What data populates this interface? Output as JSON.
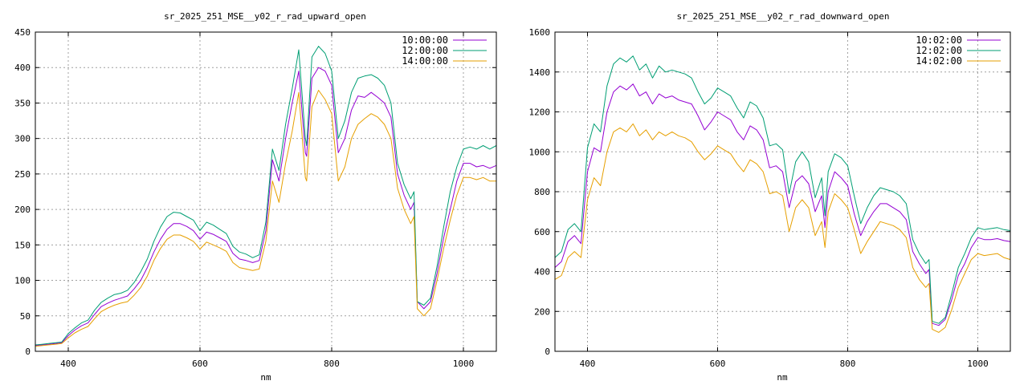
{
  "chart_data": [
    {
      "type": "line",
      "title": "sr_2025_251_MSE__y02_r_rad_upward_open",
      "xlabel": "nm",
      "ylabel": "",
      "xlim": [
        350,
        1050
      ],
      "ylim": [
        0,
        450
      ],
      "xticks": [
        400,
        600,
        800,
        1000
      ],
      "yticks": [
        0,
        50,
        100,
        150,
        200,
        250,
        300,
        350,
        400,
        450
      ],
      "grid": true,
      "legend_position": "top-right",
      "series": [
        {
          "name": "10:00:00",
          "color": "#9400d3",
          "x": [
            350,
            360,
            370,
            380,
            390,
            400,
            410,
            420,
            430,
            440,
            450,
            460,
            470,
            480,
            490,
            500,
            510,
            520,
            530,
            540,
            550,
            560,
            570,
            580,
            590,
            600,
            610,
            620,
            630,
            640,
            650,
            660,
            670,
            680,
            690,
            700,
            710,
            720,
            730,
            740,
            750,
            760,
            762,
            770,
            780,
            790,
            800,
            810,
            820,
            830,
            840,
            850,
            860,
            870,
            880,
            890,
            900,
            910,
            920,
            925,
            930,
            940,
            950,
            960,
            970,
            980,
            990,
            1000,
            1010,
            1020,
            1030,
            1040,
            1050
          ],
          "y": [
            8,
            9,
            10,
            11,
            12,
            22,
            30,
            36,
            40,
            52,
            63,
            68,
            72,
            75,
            78,
            88,
            100,
            118,
            140,
            158,
            172,
            180,
            180,
            176,
            170,
            158,
            168,
            165,
            160,
            155,
            138,
            130,
            128,
            125,
            128,
            170,
            270,
            240,
            300,
            350,
            395,
            280,
            275,
            385,
            400,
            395,
            375,
            280,
            300,
            340,
            360,
            358,
            365,
            358,
            350,
            330,
            250,
            220,
            200,
            210,
            70,
            60,
            70,
            110,
            160,
            200,
            240,
            265,
            265,
            260,
            262,
            258,
            262
          ]
        },
        {
          "name": "12:00:00",
          "color": "#009e73",
          "x": [
            350,
            360,
            370,
            380,
            390,
            400,
            410,
            420,
            430,
            440,
            450,
            460,
            470,
            480,
            490,
            500,
            510,
            520,
            530,
            540,
            550,
            560,
            570,
            580,
            590,
            600,
            610,
            620,
            630,
            640,
            650,
            660,
            670,
            680,
            690,
            700,
            710,
            720,
            730,
            740,
            750,
            760,
            762,
            770,
            780,
            790,
            800,
            810,
            820,
            830,
            840,
            850,
            860,
            870,
            880,
            890,
            900,
            910,
            920,
            925,
            930,
            940,
            950,
            960,
            970,
            980,
            990,
            1000,
            1010,
            1020,
            1030,
            1040,
            1050
          ],
          "y": [
            9,
            10,
            11,
            12,
            13,
            25,
            33,
            40,
            44,
            58,
            69,
            75,
            80,
            82,
            86,
            97,
            112,
            130,
            155,
            175,
            190,
            196,
            195,
            190,
            185,
            170,
            182,
            178,
            172,
            166,
            148,
            140,
            137,
            132,
            136,
            182,
            285,
            255,
            320,
            370,
            425,
            300,
            290,
            415,
            430,
            420,
            395,
            300,
            325,
            365,
            385,
            388,
            390,
            385,
            375,
            350,
            265,
            235,
            215,
            225,
            70,
            65,
            75,
            120,
            175,
            225,
            260,
            285,
            288,
            285,
            290,
            285,
            290
          ]
        },
        {
          "name": "14:00:00",
          "color": "#e69f00",
          "x": [
            350,
            360,
            370,
            380,
            390,
            400,
            410,
            420,
            430,
            440,
            450,
            460,
            470,
            480,
            490,
            500,
            510,
            520,
            530,
            540,
            550,
            560,
            570,
            580,
            590,
            600,
            610,
            620,
            630,
            640,
            650,
            660,
            670,
            680,
            690,
            700,
            710,
            720,
            730,
            740,
            750,
            760,
            762,
            770,
            780,
            790,
            800,
            810,
            820,
            830,
            840,
            850,
            860,
            870,
            880,
            890,
            900,
            910,
            920,
            925,
            930,
            940,
            950,
            960,
            970,
            980,
            990,
            1000,
            1010,
            1020,
            1030,
            1040,
            1050
          ],
          "y": [
            7,
            8,
            9,
            10,
            11,
            19,
            26,
            31,
            35,
            46,
            56,
            61,
            65,
            68,
            70,
            79,
            90,
            106,
            128,
            145,
            158,
            164,
            164,
            160,
            155,
            144,
            154,
            150,
            146,
            141,
            125,
            118,
            116,
            114,
            116,
            155,
            240,
            210,
            265,
            310,
            365,
            245,
            240,
            345,
            368,
            355,
            335,
            240,
            260,
            300,
            320,
            328,
            335,
            330,
            320,
            300,
            230,
            200,
            180,
            190,
            60,
            50,
            60,
            100,
            145,
            185,
            220,
            245,
            245,
            242,
            245,
            240,
            240
          ]
        }
      ]
    },
    {
      "type": "line",
      "title": "sr_2025_251_MSE__y02_r_rad_downward_open",
      "xlabel": "nm",
      "ylabel": "",
      "xlim": [
        350,
        1050
      ],
      "ylim": [
        0,
        1600
      ],
      "xticks": [
        400,
        600,
        800,
        1000
      ],
      "yticks": [
        0,
        200,
        400,
        600,
        800,
        1000,
        1200,
        1400,
        1600
      ],
      "grid": true,
      "legend_position": "top-right",
      "series": [
        {
          "name": "10:02:00",
          "color": "#9400d3",
          "x": [
            350,
            360,
            370,
            380,
            390,
            400,
            410,
            420,
            430,
            440,
            450,
            460,
            470,
            480,
            490,
            500,
            510,
            520,
            530,
            540,
            550,
            560,
            570,
            580,
            590,
            600,
            610,
            620,
            630,
            640,
            650,
            660,
            670,
            680,
            690,
            700,
            710,
            720,
            730,
            740,
            750,
            760,
            765,
            770,
            780,
            790,
            800,
            810,
            820,
            830,
            840,
            850,
            860,
            870,
            880,
            890,
            900,
            910,
            920,
            925,
            930,
            940,
            950,
            960,
            970,
            980,
            990,
            1000,
            1010,
            1020,
            1030,
            1040,
            1050
          ],
          "y": [
            420,
            450,
            550,
            580,
            540,
            900,
            1020,
            1000,
            1200,
            1300,
            1330,
            1310,
            1340,
            1280,
            1300,
            1240,
            1290,
            1270,
            1280,
            1260,
            1250,
            1240,
            1180,
            1110,
            1150,
            1200,
            1180,
            1160,
            1100,
            1060,
            1130,
            1110,
            1060,
            920,
            930,
            900,
            720,
            850,
            880,
            840,
            700,
            780,
            620,
            800,
            900,
            870,
            830,
            690,
            580,
            650,
            700,
            740,
            740,
            720,
            700,
            660,
            500,
            440,
            390,
            410,
            140,
            130,
            160,
            260,
            380,
            440,
            520,
            570,
            560,
            560,
            565,
            555,
            550
          ]
        },
        {
          "name": "12:02:00",
          "color": "#009e73",
          "x": [
            350,
            360,
            370,
            380,
            390,
            400,
            410,
            420,
            430,
            440,
            450,
            460,
            470,
            480,
            490,
            500,
            510,
            520,
            530,
            540,
            550,
            560,
            570,
            580,
            590,
            600,
            610,
            620,
            630,
            640,
            650,
            660,
            670,
            680,
            690,
            700,
            710,
            720,
            730,
            740,
            750,
            760,
            765,
            770,
            780,
            790,
            800,
            810,
            820,
            830,
            840,
            850,
            860,
            870,
            880,
            890,
            900,
            910,
            920,
            925,
            930,
            940,
            950,
            960,
            970,
            980,
            990,
            1000,
            1010,
            1020,
            1030,
            1040,
            1050
          ],
          "y": [
            470,
            500,
            610,
            640,
            600,
            1020,
            1140,
            1100,
            1330,
            1440,
            1470,
            1450,
            1480,
            1410,
            1440,
            1370,
            1430,
            1400,
            1410,
            1400,
            1390,
            1370,
            1300,
            1240,
            1270,
            1320,
            1300,
            1280,
            1220,
            1170,
            1250,
            1230,
            1170,
            1030,
            1040,
            1010,
            790,
            950,
            1000,
            950,
            770,
            870,
            680,
            900,
            990,
            970,
            930,
            780,
            640,
            720,
            780,
            820,
            810,
            800,
            780,
            740,
            560,
            490,
            440,
            460,
            150,
            140,
            170,
            290,
            420,
            490,
            570,
            620,
            610,
            615,
            620,
            610,
            605
          ]
        },
        {
          "name": "14:02:00",
          "color": "#e69f00",
          "x": [
            350,
            360,
            370,
            380,
            390,
            400,
            410,
            420,
            430,
            440,
            450,
            460,
            470,
            480,
            490,
            500,
            510,
            520,
            530,
            540,
            550,
            560,
            570,
            580,
            590,
            600,
            610,
            620,
            630,
            640,
            650,
            660,
            670,
            680,
            690,
            700,
            710,
            720,
            730,
            740,
            750,
            760,
            765,
            770,
            780,
            790,
            800,
            810,
            820,
            830,
            840,
            850,
            860,
            870,
            880,
            890,
            900,
            910,
            920,
            925,
            930,
            940,
            950,
            960,
            970,
            980,
            990,
            1000,
            1010,
            1020,
            1030,
            1040,
            1050
          ],
          "y": [
            360,
            380,
            470,
            500,
            470,
            760,
            870,
            830,
            1000,
            1100,
            1120,
            1100,
            1140,
            1080,
            1110,
            1060,
            1100,
            1080,
            1100,
            1080,
            1070,
            1050,
            1000,
            960,
            990,
            1030,
            1010,
            990,
            940,
            900,
            960,
            940,
            900,
            790,
            800,
            780,
            600,
            720,
            760,
            720,
            580,
            650,
            520,
            700,
            790,
            760,
            720,
            610,
            490,
            550,
            600,
            650,
            640,
            630,
            610,
            570,
            420,
            360,
            320,
            340,
            110,
            95,
            120,
            210,
            320,
            390,
            460,
            490,
            480,
            485,
            490,
            470,
            460
          ]
        }
      ]
    }
  ]
}
